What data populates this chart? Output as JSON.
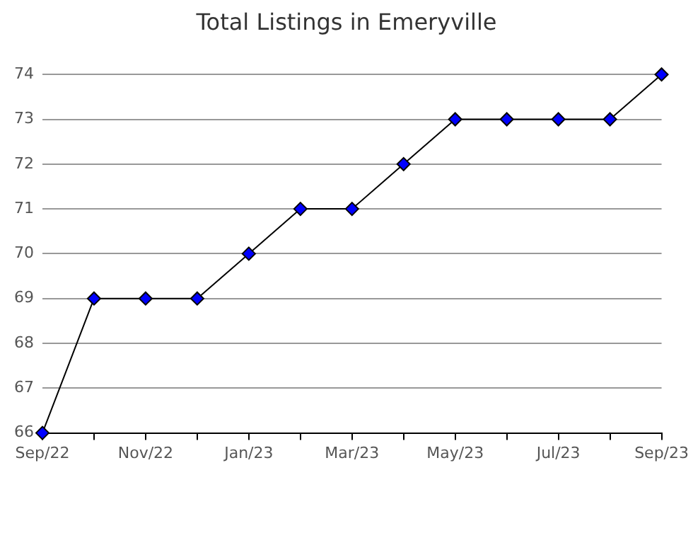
{
  "chart_data": {
    "type": "line",
    "title": "Total Listings in Emeryville",
    "categories": [
      "Sep/22",
      null,
      "Nov/22",
      null,
      "Jan/23",
      null,
      "Mar/23",
      null,
      "May/23",
      null,
      "Jul/23",
      null,
      "Sep/23"
    ],
    "series": [
      {
        "color": "#0000ff",
        "values": [
          66,
          69,
          69,
          69,
          70,
          71,
          71,
          72,
          73,
          73,
          73,
          73,
          74
        ]
      }
    ],
    "ylim": [
      66,
      74
    ],
    "yticks": [
      66,
      67,
      68,
      69,
      70,
      71,
      72,
      73,
      74
    ],
    "grid": "y",
    "legend": false,
    "marker": "diamond",
    "line_style": "solid"
  }
}
